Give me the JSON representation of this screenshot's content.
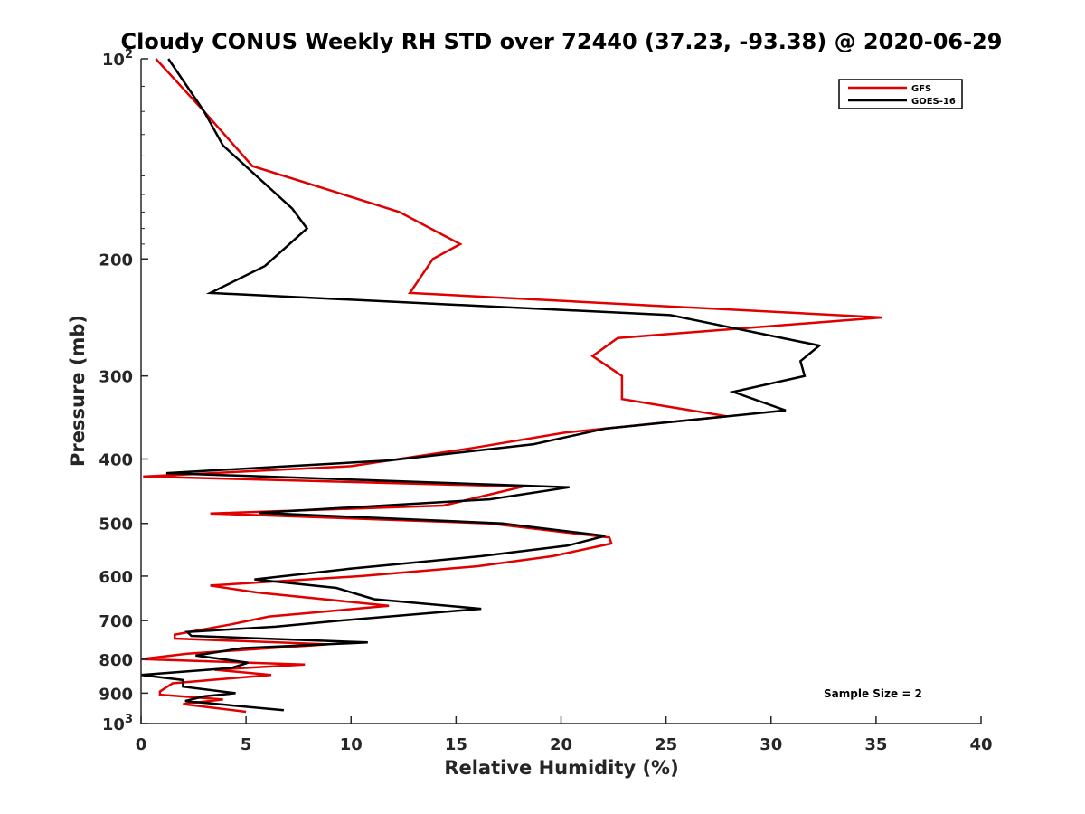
{
  "chart_data": {
    "type": "line",
    "title": "Cloudy CONUS Weekly RH STD over 72440 (37.23, -93.38) @ 2020-06-29",
    "xlabel": "Relative Humidity (%)",
    "ylabel": "Pressure (mb)",
    "xlim": [
      0,
      40
    ],
    "ylim": [
      100,
      1000
    ],
    "y_scale": "log",
    "y_reversed": true,
    "x_ticks": [
      "0",
      "5",
      "10",
      "15",
      "20",
      "25",
      "30",
      "35",
      "40"
    ],
    "y_ticks": [
      {
        "value": 100,
        "base": "10",
        "exp": "2"
      },
      {
        "value": 200,
        "label": "200"
      },
      {
        "value": 300,
        "label": "300"
      },
      {
        "value": 400,
        "label": "400"
      },
      {
        "value": 500,
        "label": "500"
      },
      {
        "value": 600,
        "label": "600"
      },
      {
        "value": 700,
        "label": "700"
      },
      {
        "value": 800,
        "label": "800"
      },
      {
        "value": 900,
        "label": "900"
      },
      {
        "value": 1000,
        "base": "10",
        "exp": "3"
      }
    ],
    "legend_position": "top-right",
    "annotation": "Sample Size = 2",
    "series": [
      {
        "name": "GFS",
        "color": "#e00000",
        "points": [
          [
            0.7,
            100
          ],
          [
            3.0,
            120
          ],
          [
            5.3,
            145
          ],
          [
            11.0,
            165
          ],
          [
            12.3,
            170
          ],
          [
            15.2,
            190
          ],
          [
            13.9,
            200
          ],
          [
            12.8,
            225
          ],
          [
            35.3,
            245
          ],
          [
            22.7,
            263
          ],
          [
            21.5,
            280
          ],
          [
            22.9,
            300
          ],
          [
            22.9,
            325
          ],
          [
            27.9,
            345
          ],
          [
            20.2,
            365
          ],
          [
            15.8,
            385
          ],
          [
            10.0,
            410
          ],
          [
            0.1,
            425
          ],
          [
            18.2,
            440
          ],
          [
            14.4,
            470
          ],
          [
            3.3,
            483
          ],
          [
            16.6,
            500
          ],
          [
            22.3,
            525
          ],
          [
            22.4,
            536
          ],
          [
            19.6,
            560
          ],
          [
            16.0,
            580
          ],
          [
            10.5,
            600
          ],
          [
            3.3,
            620
          ],
          [
            5.5,
            635
          ],
          [
            11.8,
            665
          ],
          [
            6.1,
            690
          ],
          [
            4.2,
            710
          ],
          [
            1.6,
            735
          ],
          [
            1.6,
            745
          ],
          [
            8.9,
            760
          ],
          [
            2.2,
            785
          ],
          [
            0.0,
            800
          ],
          [
            7.8,
            815
          ],
          [
            3.5,
            830
          ],
          [
            6.2,
            845
          ],
          [
            1.5,
            870
          ],
          [
            0.9,
            895
          ],
          [
            0.9,
            905
          ],
          [
            3.9,
            920
          ],
          [
            2.0,
            935
          ],
          [
            5.0,
            960
          ]
        ]
      },
      {
        "name": "GOES-16",
        "color": "#000000",
        "points": [
          [
            1.3,
            100
          ],
          [
            3.0,
            120
          ],
          [
            3.9,
            135
          ],
          [
            7.2,
            168
          ],
          [
            7.9,
            180
          ],
          [
            5.9,
            205
          ],
          [
            3.3,
            225
          ],
          [
            25.2,
            243
          ],
          [
            32.3,
            270
          ],
          [
            31.4,
            285
          ],
          [
            31.6,
            300
          ],
          [
            28.2,
            317
          ],
          [
            30.7,
            338
          ],
          [
            22.1,
            360
          ],
          [
            18.7,
            380
          ],
          [
            11.8,
            402
          ],
          [
            1.2,
            420
          ],
          [
            20.4,
            441
          ],
          [
            16.6,
            460
          ],
          [
            5.6,
            482
          ],
          [
            17.2,
            500
          ],
          [
            22.1,
            522
          ],
          [
            20.3,
            540
          ],
          [
            16.2,
            560
          ],
          [
            9.9,
            585
          ],
          [
            5.4,
            607
          ],
          [
            9.3,
            625
          ],
          [
            11.1,
            650
          ],
          [
            16.2,
            672
          ],
          [
            9.5,
            700
          ],
          [
            6.4,
            715
          ],
          [
            2.2,
            728
          ],
          [
            2.4,
            738
          ],
          [
            10.8,
            755
          ],
          [
            4.8,
            770
          ],
          [
            2.6,
            790
          ],
          [
            5.1,
            810
          ],
          [
            4.3,
            825
          ],
          [
            0.0,
            845
          ],
          [
            2.0,
            860
          ],
          [
            2.0,
            880
          ],
          [
            4.5,
            900
          ],
          [
            3.0,
            910
          ],
          [
            2.1,
            925
          ],
          [
            6.8,
            955
          ]
        ]
      }
    ]
  }
}
